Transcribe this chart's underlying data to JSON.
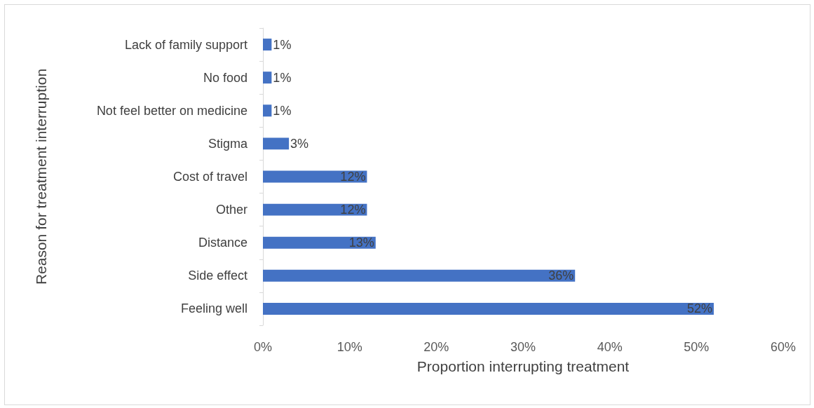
{
  "chart_data": {
    "type": "bar",
    "orientation": "horizontal",
    "xlabel": "Proportion interrupting treatment",
    "ylabel": "Reason for treatment interruption",
    "categories": [
      "Lack of family support",
      "No food",
      "Not feel better on medicine",
      "Stigma",
      "Cost of travel",
      "Other",
      "Distance",
      "Side effect",
      "Feeling well"
    ],
    "values": [
      1,
      1,
      1,
      3,
      12,
      12,
      13,
      36,
      52
    ],
    "value_labels": [
      "1%",
      "1%",
      "1%",
      "3%",
      "12%",
      "12%",
      "13%",
      "36%",
      "52%"
    ],
    "color": "#4472c4",
    "xlim": [
      0,
      60
    ],
    "xticks": [
      {
        "value": 0,
        "label": "0%"
      },
      {
        "value": 10,
        "label": "10%"
      },
      {
        "value": 20,
        "label": "20%"
      },
      {
        "value": 30,
        "label": "30%"
      },
      {
        "value": 40,
        "label": "40%"
      },
      {
        "value": 50,
        "label": "50%"
      },
      {
        "value": 60,
        "label": "60%"
      }
    ],
    "grid": false
  }
}
